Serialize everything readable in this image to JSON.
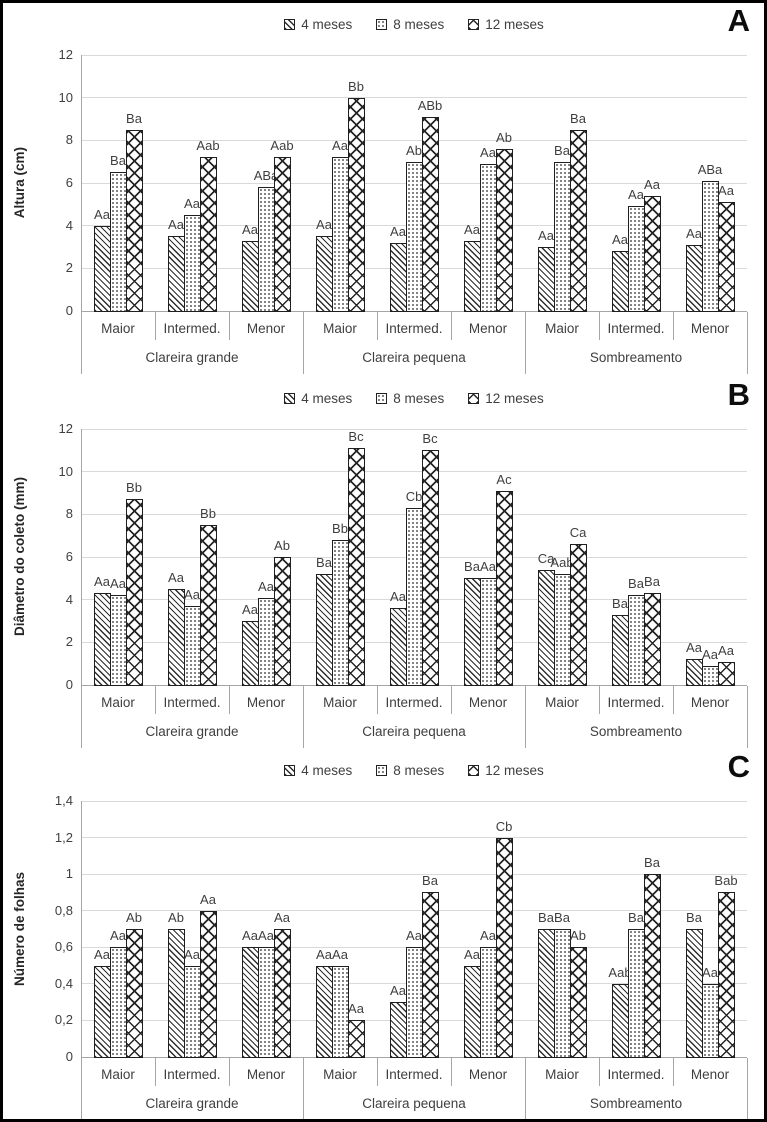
{
  "colors": {
    "gridline": "#d9d9d9",
    "axis": "#a6a6a6",
    "text": "#3f3f3f",
    "bar_outline": "#1f1f1f",
    "frame_border": "#000000"
  },
  "chart_data": [
    {
      "letter": "A",
      "type": "bar",
      "ylabel": "Altura (cm)",
      "ylim": [
        0,
        12
      ],
      "yticks": [
        0,
        2,
        4,
        6,
        8,
        10,
        12
      ],
      "ytick_labels": [
        "0",
        "2",
        "4",
        "6",
        "8",
        "10",
        "12"
      ],
      "grid": true,
      "legend_position": "top-center",
      "group_labels": [
        "Clareira grande",
        "Clareira pequena",
        "Sombreamento"
      ],
      "categories": [
        "Maior",
        "Intermed.",
        "Menor",
        "Maior",
        "Intermed.",
        "Menor",
        "Maior",
        "Intermed.",
        "Menor"
      ],
      "series": [
        {
          "name": "4 meses",
          "pattern": "diagonal-hatch",
          "values": [
            4.0,
            3.5,
            3.3,
            3.5,
            3.2,
            3.3,
            3.0,
            2.8,
            3.1
          ],
          "labels": [
            "Aa",
            "Aa",
            "Aa",
            "Aa",
            "Aa",
            "Aa",
            "Aa",
            "Aa",
            "Aa"
          ]
        },
        {
          "name": "8 meses",
          "pattern": "dots",
          "values": [
            6.5,
            4.5,
            5.8,
            7.2,
            7.0,
            6.9,
            7.0,
            4.9,
            6.1
          ],
          "labels": [
            "Ba",
            "Aa",
            "ABa",
            "Aa",
            "Ab",
            "Aa",
            "Ba",
            "Aa",
            "ABa"
          ]
        },
        {
          "name": "12 meses",
          "pattern": "diagonal-crosshatch",
          "values": [
            8.5,
            7.2,
            7.2,
            10.0,
            9.1,
            7.6,
            8.5,
            5.4,
            5.1
          ],
          "labels": [
            "Ba",
            "Aab",
            "Aab",
            "Bb",
            "ABb",
            "Ab",
            "Ba",
            "Aa",
            "Aa"
          ]
        }
      ]
    },
    {
      "letter": "B",
      "type": "bar",
      "ylabel": "Diâmetro do coleto (mm)",
      "ylim": [
        0,
        12
      ],
      "yticks": [
        0,
        2,
        4,
        6,
        8,
        10,
        12
      ],
      "ytick_labels": [
        "0",
        "2",
        "4",
        "6",
        "8",
        "10",
        "12"
      ],
      "grid": true,
      "legend_position": "top-center",
      "group_labels": [
        "Clareira grande",
        "Clareira pequena",
        "Sombreamento"
      ],
      "categories": [
        "Maior",
        "Intermed.",
        "Menor",
        "Maior",
        "Intermed.",
        "Menor",
        "Maior",
        "Intermed.",
        "Menor"
      ],
      "series": [
        {
          "name": "4 meses",
          "pattern": "diagonal-hatch",
          "values": [
            4.3,
            4.5,
            3.0,
            5.2,
            3.6,
            5.0,
            5.4,
            3.3,
            1.2
          ],
          "labels": [
            "Aa",
            "Aa",
            "Aa",
            "Ba",
            "Aa",
            "Ba",
            "Ca",
            "Ba",
            "Aa"
          ]
        },
        {
          "name": "8 meses",
          "pattern": "dots",
          "values": [
            4.2,
            3.7,
            4.1,
            6.8,
            8.3,
            5.0,
            5.2,
            4.2,
            0.9
          ],
          "labels": [
            "Aa",
            "Aa",
            "Aa",
            "Bb",
            "Cb",
            "Aa",
            "Aab",
            "Ba",
            "Aa"
          ]
        },
        {
          "name": "12 meses",
          "pattern": "diagonal-crosshatch",
          "values": [
            8.7,
            7.5,
            6.0,
            11.1,
            11.0,
            9.1,
            6.6,
            4.3,
            1.1
          ],
          "labels": [
            "Bb",
            "Bb",
            "Ab",
            "Bc",
            "Bc",
            "Ac",
            "Ca",
            "Ba",
            "Aa"
          ]
        }
      ]
    },
    {
      "letter": "C",
      "type": "bar",
      "ylabel": "Número de folhas",
      "ylim": [
        0,
        1.4
      ],
      "yticks": [
        0,
        0.2,
        0.4,
        0.6,
        0.8,
        1.0,
        1.2,
        1.4
      ],
      "ytick_labels": [
        "0",
        "0,2",
        "0,4",
        "0,6",
        "0,8",
        "1",
        "1,2",
        "1,4"
      ],
      "grid": true,
      "legend_position": "top-center",
      "group_labels": [
        "Clareira grande",
        "Clareira pequena",
        "Sombreamento"
      ],
      "categories": [
        "Maior",
        "Intermed.",
        "Menor",
        "Maior",
        "Intermed.",
        "Menor",
        "Maior",
        "Intermed.",
        "Menor"
      ],
      "series": [
        {
          "name": "4 meses",
          "pattern": "diagonal-hatch",
          "values": [
            0.5,
            0.7,
            0.6,
            0.5,
            0.3,
            0.5,
            0.7,
            0.4,
            0.7
          ],
          "labels": [
            "Aa",
            "Ab",
            "Aa",
            "Aa",
            "Aa",
            "Aa",
            "Ba",
            "Aab",
            "Ba"
          ]
        },
        {
          "name": "8 meses",
          "pattern": "dots",
          "values": [
            0.6,
            0.5,
            0.6,
            0.5,
            0.6,
            0.6,
            0.7,
            0.7,
            0.4
          ],
          "labels": [
            "Aa",
            "Aa",
            "Aa",
            "Aa",
            "Aa",
            "Aa",
            "Ba",
            "Ba",
            "Aa"
          ]
        },
        {
          "name": "12 meses",
          "pattern": "diagonal-crosshatch",
          "values": [
            0.7,
            0.8,
            0.7,
            0.2,
            0.9,
            1.2,
            0.6,
            1.0,
            0.9
          ],
          "labels": [
            "Ab",
            "Aa",
            "Aa",
            "Aa",
            "Ba",
            "Cb",
            "Ab",
            "Ba",
            "Bab"
          ]
        }
      ]
    }
  ]
}
